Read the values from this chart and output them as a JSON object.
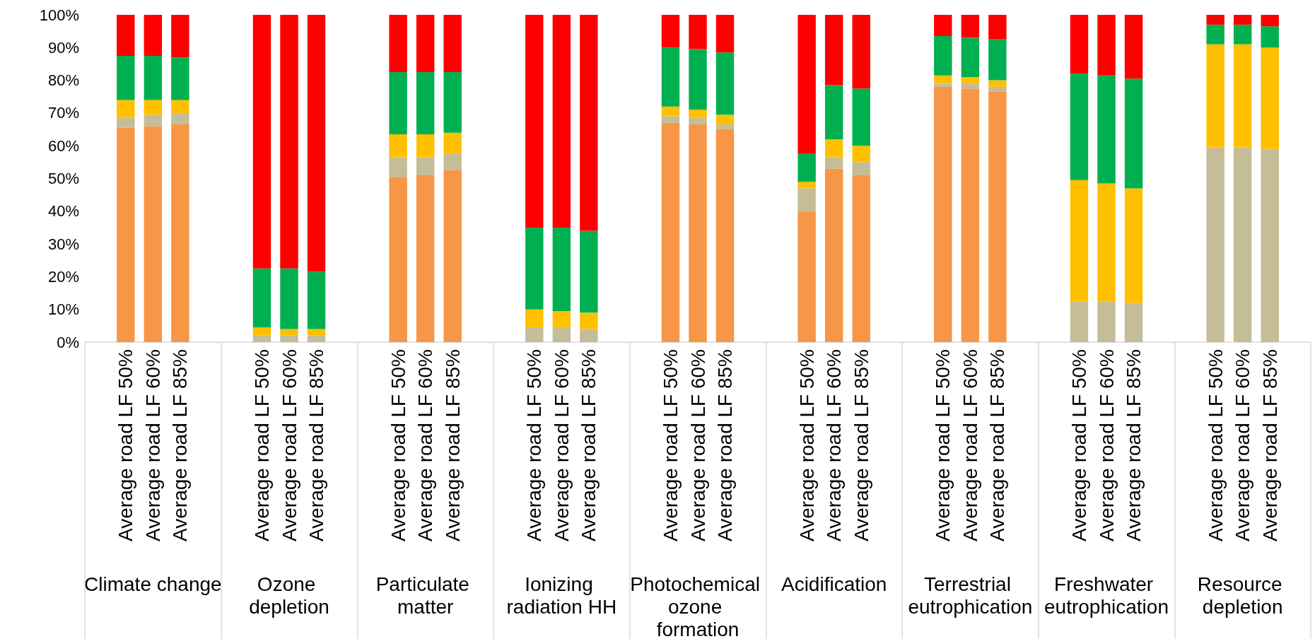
{
  "chart_data": {
    "type": "bar",
    "stacked": true,
    "grid": false,
    "categories": [
      null,
      "Average road LF 50%",
      "Average road LF 60%",
      "Average road LF 85%",
      null,
      null,
      "Average road LF 50%",
      "Average road LF 60%",
      "Average road LF 85%",
      null,
      null,
      "Average road LF 50%",
      "Average road LF 60%",
      "Average road LF 85%",
      null,
      null,
      "Average road LF 50%",
      "Average road LF 60%",
      "Average road LF 85%",
      null,
      null,
      "Average road LF 50%",
      "Average road LF 60%",
      "Average road LF 85%",
      null,
      null,
      "Average road LF 50%",
      "Average road LF 60%",
      "Average road LF 85%",
      null,
      null,
      "Average road LF 50%",
      "Average road LF 60%",
      "Average road LF 85%",
      null,
      null,
      "Average road LF 50%",
      "Average road LF 60%",
      "Average road LF 85%",
      null,
      null,
      "Average road LF 50%",
      "Average road LF 60%",
      "Average road LF 85%",
      null
    ],
    "series": [
      {
        "color": "#f79646",
        "values": [
          null,
          65.5,
          66,
          66.5,
          null,
          null,
          0,
          0,
          0,
          null,
          null,
          50.5,
          51,
          52.5,
          null,
          null,
          0,
          0,
          0,
          null,
          null,
          67,
          66.5,
          65,
          null,
          null,
          40,
          53,
          51,
          null,
          null,
          78,
          77.5,
          76.5,
          null,
          null,
          0,
          0,
          0,
          null,
          null,
          0,
          0,
          0,
          null
        ]
      },
      {
        "color": "#c4bd97",
        "values": [
          null,
          3,
          3.5,
          3.5,
          null,
          null,
          2,
          2,
          2,
          null,
          null,
          6,
          5.5,
          5,
          null,
          null,
          4.5,
          4.5,
          4,
          null,
          null,
          2,
          2,
          1.5,
          null,
          null,
          7,
          3.5,
          4,
          null,
          null,
          1,
          1.5,
          1.5,
          null,
          null,
          12.5,
          12.5,
          12,
          null,
          null,
          59.5,
          59.5,
          59,
          null
        ]
      },
      {
        "color": "#ffc000",
        "values": [
          null,
          5.5,
          4.5,
          4,
          null,
          null,
          2.5,
          2,
          2,
          null,
          null,
          7,
          7,
          6.5,
          null,
          null,
          5.5,
          5,
          5,
          null,
          null,
          3,
          2.5,
          3,
          null,
          null,
          2,
          5.5,
          5,
          null,
          null,
          2.5,
          2,
          2,
          null,
          null,
          37,
          36,
          35,
          null,
          null,
          31.5,
          31.5,
          31,
          null
        ]
      },
      {
        "color": "#00b050",
        "values": [
          null,
          13.5,
          13.5,
          13,
          null,
          null,
          18,
          18.5,
          17.5,
          null,
          null,
          19,
          19,
          18.5,
          null,
          null,
          25,
          25.5,
          25,
          null,
          null,
          18,
          18.5,
          19,
          null,
          null,
          8.5,
          16.5,
          17.5,
          null,
          null,
          12,
          12,
          12.5,
          null,
          null,
          32.5,
          33,
          33.5,
          null,
          null,
          6,
          6,
          6.5,
          null
        ]
      },
      {
        "color": "#ff0000",
        "values": [
          null,
          12.5,
          12.5,
          13,
          null,
          null,
          77.5,
          77.5,
          78.5,
          null,
          null,
          17.5,
          17.5,
          17.5,
          null,
          null,
          65,
          65,
          66,
          null,
          null,
          10,
          10.5,
          11.5,
          null,
          null,
          42.5,
          21.5,
          22.5,
          null,
          null,
          6.5,
          7,
          7.5,
          null,
          null,
          18,
          18.5,
          19.5,
          null,
          null,
          3,
          3,
          3.5,
          null
        ]
      }
    ],
    "ylim": [
      0,
      100
    ],
    "yticks": [
      {
        "value": 0,
        "label": "0%"
      },
      {
        "value": 10,
        "label": "10%"
      },
      {
        "value": 20,
        "label": "20%"
      },
      {
        "value": 30,
        "label": "30%"
      },
      {
        "value": 40,
        "label": "40%"
      },
      {
        "value": 50,
        "label": "50%"
      },
      {
        "value": 60,
        "label": "60%"
      },
      {
        "value": 70,
        "label": "70%"
      },
      {
        "value": 80,
        "label": "80%"
      },
      {
        "value": 90,
        "label": "90%"
      },
      {
        "value": 100,
        "label": "100%"
      }
    ],
    "annotations": [
      "Climate change",
      "Ozone depletion",
      "Particulate matter",
      "Ionizing radiation HH",
      "Photochemical ozone formation",
      "Acidification",
      "Terrestrial eutrophication",
      "Freshwater eutrophication",
      "Resource depletion"
    ]
  }
}
